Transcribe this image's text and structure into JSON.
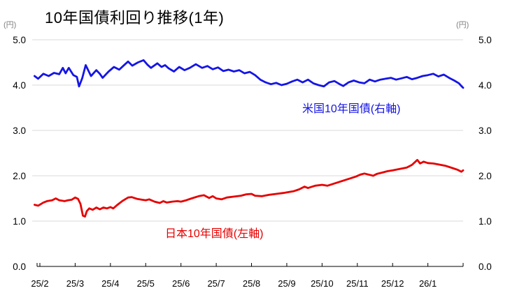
{
  "header": {
    "title": "10年国債利回り推移(1年)"
  },
  "chart_data": {
    "type": "line",
    "title": "10年国債利回り推移(1年)",
    "legend_position": "inline-annotations",
    "grid": true,
    "x_axis": {
      "tick_labels": [
        "25/2",
        "25/3",
        "25/4",
        "25/5",
        "25/6",
        "25/7",
        "25/8",
        "25/9",
        "25/10",
        "25/11",
        "25/12",
        "26/1"
      ]
    },
    "y_axis": {
      "tick_values": [
        5,
        4,
        3,
        2,
        1,
        0
      ],
      "tick_labels": [
        "5.0",
        "4.0",
        "3.0",
        "2.0",
        "1.0",
        "0.0"
      ]
    },
    "left_axis": {
      "unit": "(円)",
      "range": [
        0.0,
        5.0
      ]
    },
    "right_axis": {
      "unit": "(円)",
      "range": [
        0.0,
        5.0
      ]
    },
    "style": {
      "grid_color": "#d9d9d9",
      "axis_line_color": "#000000",
      "axis_text_color": "#000000",
      "unit_text_color": "#7f7f7f",
      "background": "#ffffff"
    },
    "series": [
      {
        "id": "japan-10y-line",
        "name": "日本10年国債(左軸)",
        "axis": "left",
        "color": "#e60000",
        "points": [
          [
            -0.15,
            1.36
          ],
          [
            -0.05,
            1.34
          ],
          [
            0.1,
            1.41
          ],
          [
            0.2,
            1.44
          ],
          [
            0.35,
            1.46
          ],
          [
            0.45,
            1.5
          ],
          [
            0.55,
            1.46
          ],
          [
            0.7,
            1.44
          ],
          [
            0.8,
            1.46
          ],
          [
            0.9,
            1.47
          ],
          [
            1.0,
            1.52
          ],
          [
            1.08,
            1.49
          ],
          [
            1.15,
            1.38
          ],
          [
            1.22,
            1.12
          ],
          [
            1.28,
            1.1
          ],
          [
            1.33,
            1.22
          ],
          [
            1.4,
            1.28
          ],
          [
            1.5,
            1.25
          ],
          [
            1.6,
            1.3
          ],
          [
            1.7,
            1.26
          ],
          [
            1.8,
            1.3
          ],
          [
            1.9,
            1.28
          ],
          [
            2.0,
            1.31
          ],
          [
            2.08,
            1.28
          ],
          [
            2.2,
            1.36
          ],
          [
            2.35,
            1.45
          ],
          [
            2.5,
            1.52
          ],
          [
            2.6,
            1.53
          ],
          [
            2.75,
            1.49
          ],
          [
            2.9,
            1.47
          ],
          [
            3.0,
            1.46
          ],
          [
            3.1,
            1.48
          ],
          [
            3.25,
            1.43
          ],
          [
            3.4,
            1.4
          ],
          [
            3.5,
            1.44
          ],
          [
            3.6,
            1.41
          ],
          [
            3.75,
            1.43
          ],
          [
            3.9,
            1.44
          ],
          [
            4.0,
            1.43
          ],
          [
            4.15,
            1.46
          ],
          [
            4.3,
            1.5
          ],
          [
            4.5,
            1.55
          ],
          [
            4.65,
            1.57
          ],
          [
            4.8,
            1.51
          ],
          [
            4.9,
            1.55
          ],
          [
            5.0,
            1.5
          ],
          [
            5.15,
            1.48
          ],
          [
            5.3,
            1.52
          ],
          [
            5.5,
            1.54
          ],
          [
            5.7,
            1.56
          ],
          [
            5.85,
            1.59
          ],
          [
            6.0,
            1.6
          ],
          [
            6.1,
            1.56
          ],
          [
            6.3,
            1.55
          ],
          [
            6.5,
            1.58
          ],
          [
            6.7,
            1.6
          ],
          [
            6.9,
            1.62
          ],
          [
            7.05,
            1.64
          ],
          [
            7.2,
            1.66
          ],
          [
            7.35,
            1.7
          ],
          [
            7.5,
            1.76
          ],
          [
            7.6,
            1.73
          ],
          [
            7.8,
            1.78
          ],
          [
            8.0,
            1.8
          ],
          [
            8.15,
            1.78
          ],
          [
            8.35,
            1.83
          ],
          [
            8.55,
            1.88
          ],
          [
            8.75,
            1.93
          ],
          [
            8.95,
            1.98
          ],
          [
            9.1,
            2.03
          ],
          [
            9.2,
            2.05
          ],
          [
            9.35,
            2.02
          ],
          [
            9.45,
            2.0
          ],
          [
            9.55,
            2.04
          ],
          [
            9.7,
            2.07
          ],
          [
            9.85,
            2.1
          ],
          [
            10.0,
            2.12
          ],
          [
            10.2,
            2.15
          ],
          [
            10.4,
            2.18
          ],
          [
            10.55,
            2.24
          ],
          [
            10.7,
            2.35
          ],
          [
            10.78,
            2.27
          ],
          [
            10.88,
            2.31
          ],
          [
            11.0,
            2.28
          ],
          [
            11.15,
            2.27
          ],
          [
            11.3,
            2.25
          ],
          [
            11.5,
            2.22
          ],
          [
            11.7,
            2.17
          ],
          [
            11.85,
            2.13
          ],
          [
            11.95,
            2.09
          ],
          [
            12.0,
            2.12
          ]
        ]
      },
      {
        "id": "us-10y-line",
        "name": "米国10年国債(右軸)",
        "axis": "right",
        "color": "#1515e6",
        "points": [
          [
            -0.15,
            4.2
          ],
          [
            -0.05,
            4.14
          ],
          [
            0.1,
            4.25
          ],
          [
            0.25,
            4.2
          ],
          [
            0.4,
            4.27
          ],
          [
            0.55,
            4.24
          ],
          [
            0.65,
            4.38
          ],
          [
            0.73,
            4.26
          ],
          [
            0.82,
            4.38
          ],
          [
            0.95,
            4.22
          ],
          [
            1.05,
            4.18
          ],
          [
            1.11,
            3.97
          ],
          [
            1.2,
            4.15
          ],
          [
            1.3,
            4.44
          ],
          [
            1.45,
            4.2
          ],
          [
            1.6,
            4.33
          ],
          [
            1.7,
            4.25
          ],
          [
            1.78,
            4.16
          ],
          [
            1.95,
            4.3
          ],
          [
            2.1,
            4.4
          ],
          [
            2.25,
            4.34
          ],
          [
            2.4,
            4.45
          ],
          [
            2.5,
            4.52
          ],
          [
            2.62,
            4.43
          ],
          [
            2.78,
            4.5
          ],
          [
            2.94,
            4.55
          ],
          [
            3.05,
            4.45
          ],
          [
            3.15,
            4.38
          ],
          [
            3.33,
            4.48
          ],
          [
            3.45,
            4.4
          ],
          [
            3.55,
            4.44
          ],
          [
            3.65,
            4.37
          ],
          [
            3.8,
            4.3
          ],
          [
            3.95,
            4.4
          ],
          [
            4.1,
            4.33
          ],
          [
            4.25,
            4.38
          ],
          [
            4.42,
            4.46
          ],
          [
            4.6,
            4.38
          ],
          [
            4.75,
            4.42
          ],
          [
            4.9,
            4.35
          ],
          [
            5.05,
            4.39
          ],
          [
            5.2,
            4.31
          ],
          [
            5.35,
            4.34
          ],
          [
            5.5,
            4.3
          ],
          [
            5.65,
            4.33
          ],
          [
            5.8,
            4.26
          ],
          [
            5.95,
            4.29
          ],
          [
            6.1,
            4.22
          ],
          [
            6.25,
            4.12
          ],
          [
            6.4,
            4.06
          ],
          [
            6.55,
            4.02
          ],
          [
            6.7,
            4.05
          ],
          [
            6.85,
            4.0
          ],
          [
            7.0,
            4.03
          ],
          [
            7.15,
            4.08
          ],
          [
            7.3,
            4.12
          ],
          [
            7.45,
            4.06
          ],
          [
            7.6,
            4.12
          ],
          [
            7.75,
            4.04
          ],
          [
            7.9,
            4.0
          ],
          [
            8.05,
            3.97
          ],
          [
            8.2,
            4.06
          ],
          [
            8.35,
            4.09
          ],
          [
            8.5,
            4.02
          ],
          [
            8.6,
            3.98
          ],
          [
            8.75,
            4.06
          ],
          [
            8.9,
            4.1
          ],
          [
            9.05,
            4.06
          ],
          [
            9.2,
            4.04
          ],
          [
            9.35,
            4.12
          ],
          [
            9.5,
            4.08
          ],
          [
            9.65,
            4.12
          ],
          [
            9.8,
            4.14
          ],
          [
            9.95,
            4.16
          ],
          [
            10.1,
            4.12
          ],
          [
            10.25,
            4.15
          ],
          [
            10.4,
            4.18
          ],
          [
            10.55,
            4.13
          ],
          [
            10.7,
            4.16
          ],
          [
            10.85,
            4.2
          ],
          [
            11.0,
            4.22
          ],
          [
            11.15,
            4.25
          ],
          [
            11.3,
            4.19
          ],
          [
            11.45,
            4.23
          ],
          [
            11.6,
            4.16
          ],
          [
            11.75,
            4.1
          ],
          [
            11.88,
            4.04
          ],
          [
            11.96,
            3.97
          ],
          [
            12.0,
            3.94
          ]
        ]
      }
    ]
  }
}
